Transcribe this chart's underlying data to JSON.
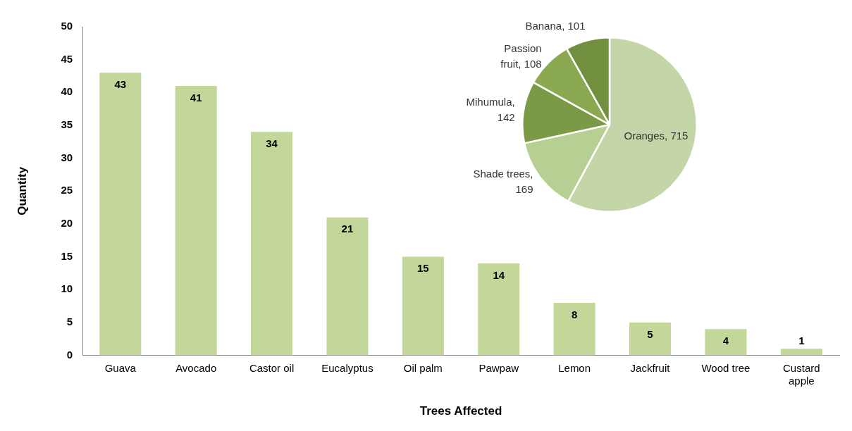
{
  "chart_data": [
    {
      "type": "bar",
      "xlabel": "Trees Affected",
      "ylabel": "Quantity",
      "categories": [
        "Guava",
        "Avocado",
        "Castor oil",
        "Eucalyptus",
        "Oil palm",
        "Pawpaw",
        "Lemon",
        "Jackfruit",
        "Wood tree",
        "Custard apple"
      ],
      "values": [
        43,
        41,
        34,
        21,
        15,
        14,
        8,
        5,
        4,
        1
      ],
      "color": "#c4d79b",
      "ylim": [
        0,
        50
      ],
      "yticks": [
        0,
        5,
        10,
        15,
        20,
        25,
        30,
        35,
        40,
        45,
        50
      ],
      "data_labels": true
    },
    {
      "type": "pie",
      "categories": [
        null,
        null,
        null,
        null,
        null
      ],
      "values": [
        715,
        169,
        142,
        108,
        101
      ],
      "colors": [
        "#c4d6a8",
        "#b8cf94",
        "#7b9a45",
        "#8aa950",
        "#728f3f"
      ],
      "value_labels": [
        "Oranges, 715",
        "Shade trees, 169",
        "Mihumula, 142",
        "Passion fruit, 108",
        "Banana, 101"
      ]
    }
  ]
}
